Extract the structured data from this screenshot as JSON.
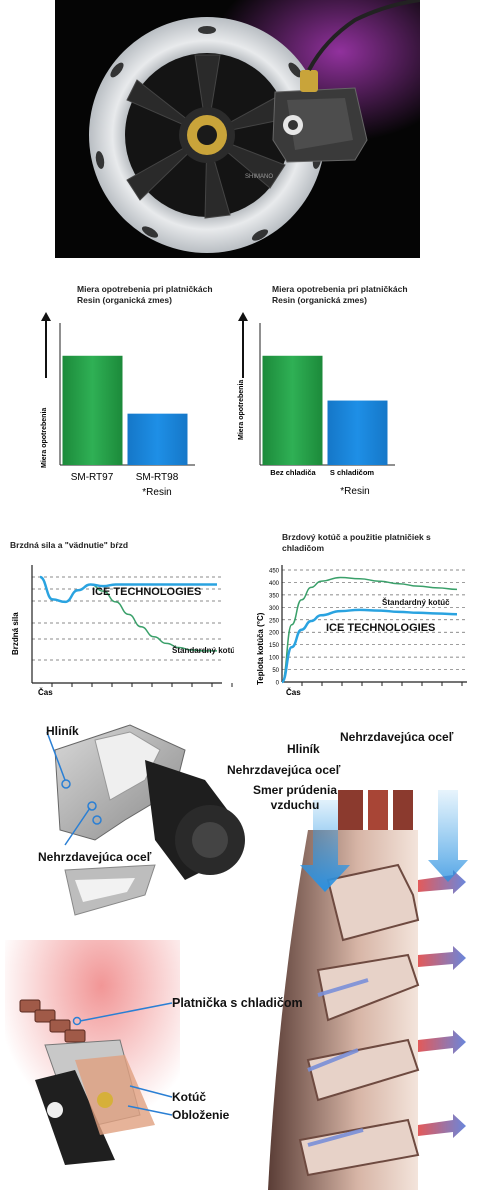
{
  "colors": {
    "green_bar": "#1c8a3a",
    "blue_bar": "#1e8fe6",
    "ice_line": "#2aa3e0",
    "standard_line": "#3aa06a",
    "photo_bg": "#050505",
    "gold": "#c9a43a"
  },
  "photo": {
    "rotor_label": "SHIMANO"
  },
  "wear_chart_left": {
    "title": "Miera opotrebenia pri platničkách Resin (organická zmes)"
  },
  "wear_chart_right": {
    "title": "Miera opotrebenia pri platničkách Resin (organická zmes)"
  },
  "fade_chart": {
    "title": "Brzdná sila a \"vädnutie\" bŕzd"
  },
  "temp_chart": {
    "title": "Brzdový kotúč a použitie platničiek s chladičom"
  },
  "chart_data": [
    {
      "type": "bar",
      "title": "Miera opotrebenia pri platničkách Resin (organická zmes)",
      "ylabel": "Miera opotrebenia",
      "categories": [
        "SM-RT97",
        "SM-RT98"
      ],
      "values": [
        100,
        47
      ],
      "ylim": [
        0,
        130
      ],
      "footnote": "*Resin",
      "grid": false
    },
    {
      "type": "bar",
      "title": "Miera opotrebenia pri platničkách Resin (organická zmes)",
      "ylabel": "Miera opotrebenia",
      "categories": [
        "Bez chladiča",
        "S chladičom"
      ],
      "values": [
        100,
        59
      ],
      "ylim": [
        0,
        130
      ],
      "footnote": "*Resin",
      "grid": false
    },
    {
      "type": "line",
      "title": "Brzdná sila a \"vädnutie\" bŕzd",
      "xlabel": "Čas",
      "ylabel": "Brzdná sila",
      "grid": true,
      "series": [
        {
          "name": "ICE TECHNOLOGIES",
          "x": [
            0,
            1,
            2,
            3,
            4,
            5,
            6,
            8,
            10,
            12,
            14
          ],
          "y": [
            100,
            73,
            70,
            84,
            91,
            89,
            91,
            91,
            91,
            91,
            91
          ]
        },
        {
          "name": "Štandardný kotúč",
          "x": [
            0,
            1,
            2,
            3,
            4,
            5,
            6,
            7,
            8,
            9,
            10,
            11,
            12,
            13,
            14
          ],
          "y": [
            100,
            73,
            70,
            84,
            91,
            83,
            70,
            55,
            40,
            28,
            20,
            15,
            12,
            11,
            11
          ]
        }
      ]
    },
    {
      "type": "line",
      "title": "Brzdový kotúč a použitie platničiek s chladičom",
      "xlabel": "Čas",
      "ylabel": "Teplota kotúča (°C)",
      "yticks": [
        0,
        50,
        100,
        150,
        200,
        250,
        300,
        350,
        400,
        450
      ],
      "ylim": [
        0,
        450
      ],
      "grid": true,
      "series": [
        {
          "name": "Štandardný kotúč",
          "x": [
            0,
            1,
            2,
            3,
            4,
            6,
            8,
            10,
            12,
            14,
            16,
            18
          ],
          "y": [
            0,
            230,
            330,
            380,
            405,
            420,
            415,
            405,
            395,
            385,
            378,
            372
          ]
        },
        {
          "name": "ICE TECHNOLOGIES",
          "x": [
            0,
            1,
            2,
            3,
            4,
            6,
            8,
            10,
            12,
            14,
            16,
            18
          ],
          "y": [
            0,
            140,
            210,
            245,
            268,
            285,
            290,
            287,
            282,
            278,
            275,
            272
          ]
        }
      ]
    }
  ],
  "diagram_top_left": {
    "label_aluminum": "Hliník",
    "label_steel": "Nehrzdavejúca oceľ"
  },
  "diagram_right": {
    "label_aluminum": "Hliník",
    "label_steel_top": "Nehrzdavejúca oceľ",
    "label_steel_mid": "Nehrzdavejúca oceľ",
    "label_airflow": "Smer prúdenia vzduchu"
  },
  "diagram_bottom_left": {
    "label_pad": "Platnička s chladičom",
    "label_rotor": "Kotúč",
    "label_lining": "Obloženie"
  }
}
